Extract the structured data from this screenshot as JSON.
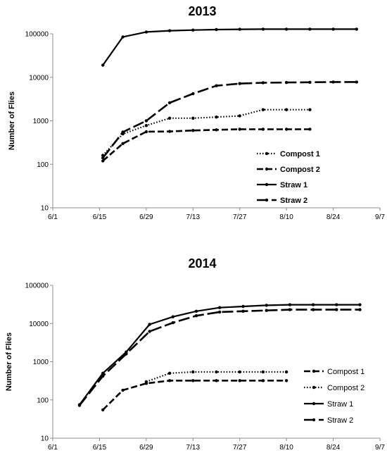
{
  "chart_data": [
    {
      "type": "line",
      "title": "2013",
      "ylabel": "Number of Flies",
      "yscale": "log",
      "ylim": [
        10,
        100000
      ],
      "yticks": [
        "10",
        "100",
        "1000",
        "10000",
        "100000"
      ],
      "xlim": [
        "6/1",
        "9/7"
      ],
      "xticks": [
        "6/1",
        "6/15",
        "6/29",
        "7/13",
        "7/27",
        "8/10",
        "8/24",
        "9/7"
      ],
      "legend_position": "right",
      "series": [
        {
          "name": "Compost 1",
          "style": "dotted",
          "x": [
            "6/16",
            "6/22",
            "6/29",
            "7/6",
            "7/13",
            "7/20",
            "7/27",
            "8/3",
            "8/10",
            "8/17"
          ],
          "y": [
            160,
            500,
            780,
            1150,
            1150,
            1220,
            1300,
            1800,
            1800,
            1800
          ]
        },
        {
          "name": "Compost 2",
          "style": "dashed",
          "x": [
            "6/16",
            "6/22",
            "6/29",
            "7/6",
            "7/13",
            "7/20",
            "7/27",
            "8/3",
            "8/10",
            "8/17"
          ],
          "y": [
            120,
            300,
            560,
            570,
            600,
            620,
            640,
            640,
            640,
            640
          ]
        },
        {
          "name": "Straw 1",
          "style": "solid",
          "x": [
            "6/16",
            "6/22",
            "6/29",
            "7/6",
            "7/13",
            "7/20",
            "7/27",
            "8/3",
            "8/10",
            "8/17",
            "8/24",
            "8/31"
          ],
          "y": [
            19000,
            85000,
            110000,
            118000,
            122000,
            125000,
            127000,
            128000,
            128000,
            128000,
            128000,
            128000
          ]
        },
        {
          "name": "Straw 2",
          "style": "long-dash",
          "x": [
            "6/16",
            "6/22",
            "6/29",
            "7/6",
            "7/13",
            "7/20",
            "7/27",
            "8/3",
            "8/10",
            "8/17",
            "8/24",
            "8/31"
          ],
          "y": [
            140,
            550,
            1000,
            2600,
            4200,
            6400,
            7200,
            7500,
            7600,
            7700,
            7800,
            7800
          ]
        }
      ]
    },
    {
      "type": "line",
      "title": "2014",
      "ylabel": "Number of Flies",
      "yscale": "log",
      "ylim": [
        10,
        100000
      ],
      "yticks": [
        "10",
        "100",
        "1000",
        "10000",
        "100000"
      ],
      "xlim": [
        "6/1",
        "9/7"
      ],
      "xticks": [
        "6/1",
        "6/15",
        "6/29",
        "7/13",
        "7/27",
        "8/10",
        "8/24",
        "9/7"
      ],
      "legend_position": "right",
      "series": [
        {
          "name": "Compost 1",
          "style": "dashed",
          "x": [
            "6/16",
            "6/22",
            "6/29",
            "7/6",
            "7/13",
            "7/20",
            "7/27",
            "8/3",
            "8/10"
          ],
          "y": [
            55,
            180,
            270,
            320,
            320,
            320,
            320,
            320,
            320
          ]
        },
        {
          "name": "Compost 2",
          "style": "dotted",
          "x": [
            "6/29",
            "7/6",
            "7/13",
            "7/20",
            "7/27",
            "8/3",
            "8/10"
          ],
          "y": [
            300,
            500,
            540,
            540,
            540,
            540,
            540
          ]
        },
        {
          "name": "Straw 1",
          "style": "solid",
          "x": [
            "6/9",
            "6/16",
            "6/23",
            "6/30",
            "7/7",
            "7/14",
            "7/21",
            "7/28",
            "8/4",
            "8/11",
            "8/18",
            "8/25",
            "9/1"
          ],
          "y": [
            75,
            500,
            1800,
            9500,
            15000,
            21000,
            26000,
            28000,
            30000,
            31000,
            31000,
            31000,
            31000
          ]
        },
        {
          "name": "Straw 2",
          "style": "long-dash",
          "x": [
            "6/9",
            "6/16",
            "6/23",
            "6/30",
            "7/7",
            "7/14",
            "7/21",
            "7/28",
            "8/4",
            "8/11",
            "8/18",
            "8/25",
            "9/1"
          ],
          "y": [
            72,
            420,
            1600,
            6200,
            10500,
            16000,
            20000,
            21000,
            22000,
            23000,
            23000,
            23000,
            23000
          ]
        }
      ]
    }
  ]
}
